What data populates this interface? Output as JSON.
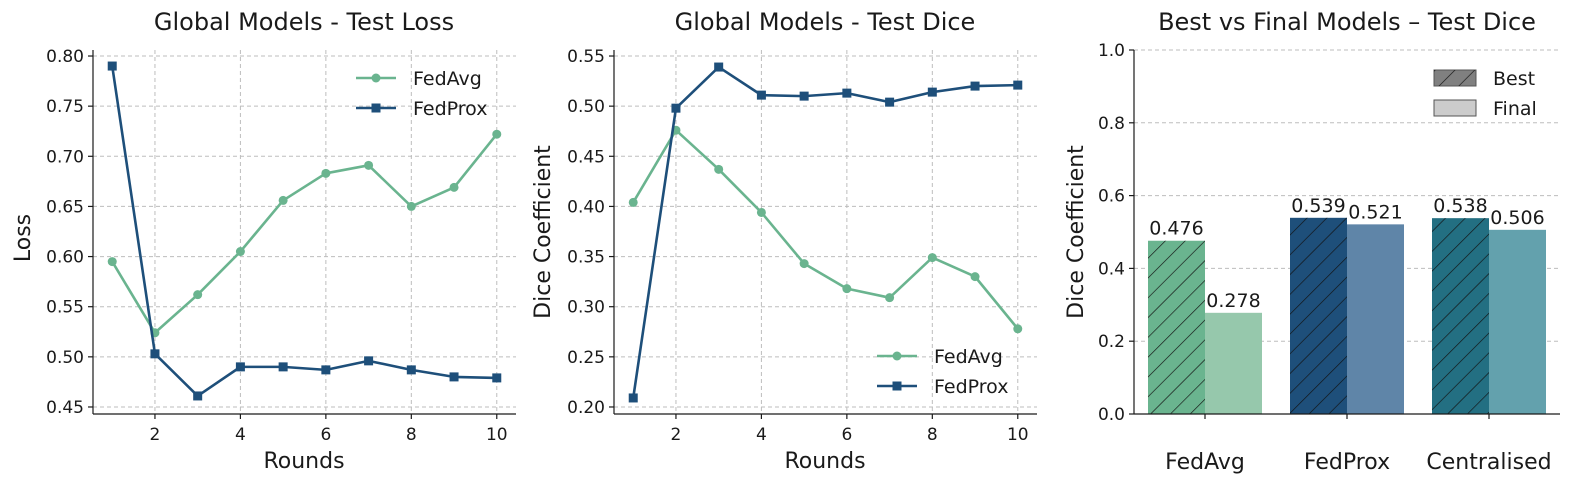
{
  "chart_data": [
    {
      "type": "line",
      "title": "Global Models - Test Loss",
      "xlabel": "Rounds",
      "ylabel": "Loss",
      "x": [
        1,
        2,
        3,
        4,
        5,
        6,
        7,
        8,
        9,
        10
      ],
      "xticks": [
        2,
        4,
        6,
        8,
        10
      ],
      "xlim": [
        0.55,
        10.45
      ],
      "yticks": [
        0.45,
        0.5,
        0.55,
        0.6,
        0.65,
        0.7,
        0.75,
        0.8
      ],
      "ylim": [
        0.443,
        0.806
      ],
      "grid": true,
      "legend_position": "upper right",
      "series": [
        {
          "name": "FedAvg",
          "color": "#6ab48f",
          "marker": "circle",
          "values": [
            0.595,
            0.524,
            0.562,
            0.605,
            0.656,
            0.683,
            0.691,
            0.65,
            0.669,
            0.722
          ]
        },
        {
          "name": "FedProx",
          "color": "#1e4f7a",
          "marker": "square",
          "values": [
            0.79,
            0.503,
            0.461,
            0.49,
            0.49,
            0.487,
            0.496,
            0.487,
            0.48,
            0.479
          ]
        }
      ]
    },
    {
      "type": "line",
      "title": "Global Models - Test Dice",
      "xlabel": "Rounds",
      "ylabel": "Dice Coefficient",
      "x": [
        1,
        2,
        3,
        4,
        5,
        6,
        7,
        8,
        9,
        10
      ],
      "xticks": [
        2,
        4,
        6,
        8,
        10
      ],
      "xlim": [
        0.55,
        10.45
      ],
      "yticks": [
        0.2,
        0.25,
        0.3,
        0.35,
        0.4,
        0.45,
        0.5,
        0.55
      ],
      "ylim": [
        0.193,
        0.556
      ],
      "grid": true,
      "legend_position": "lower right",
      "series": [
        {
          "name": "FedAvg",
          "color": "#6ab48f",
          "marker": "circle",
          "values": [
            0.404,
            0.476,
            0.437,
            0.394,
            0.343,
            0.318,
            0.309,
            0.349,
            0.33,
            0.278
          ]
        },
        {
          "name": "FedProx",
          "color": "#1e4f7a",
          "marker": "square",
          "values": [
            0.209,
            0.498,
            0.539,
            0.511,
            0.51,
            0.513,
            0.504,
            0.514,
            0.52,
            0.521
          ]
        }
      ]
    },
    {
      "type": "bar",
      "title": "Best vs Final Models – Test Dice",
      "xlabel": "",
      "ylabel": "Dice Coefficient",
      "categories": [
        "FedAvg",
        "FedProx",
        "Centralised"
      ],
      "ylim": [
        0.0,
        1.0
      ],
      "yticks": [
        0.0,
        0.2,
        0.4,
        0.6,
        0.8,
        1.0
      ],
      "grid": true,
      "legend_position": "upper right",
      "series": [
        {
          "name": "Best",
          "hatched": true,
          "values": [
            0.476,
            0.539,
            0.538
          ],
          "labels": [
            "0.476",
            "0.539",
            "0.538"
          ],
          "colors": [
            "#6ab48f",
            "#1e4f7a",
            "#236f82"
          ],
          "legend_color": "#808080"
        },
        {
          "name": "Final",
          "hatched": false,
          "values": [
            0.278,
            0.521,
            0.506
          ],
          "labels": [
            "0.278",
            "0.521",
            "0.506"
          ],
          "colors": [
            "#96c8ac",
            "#5f85a8",
            "#63a1ad"
          ],
          "legend_color": "#cccccc"
        }
      ]
    }
  ]
}
